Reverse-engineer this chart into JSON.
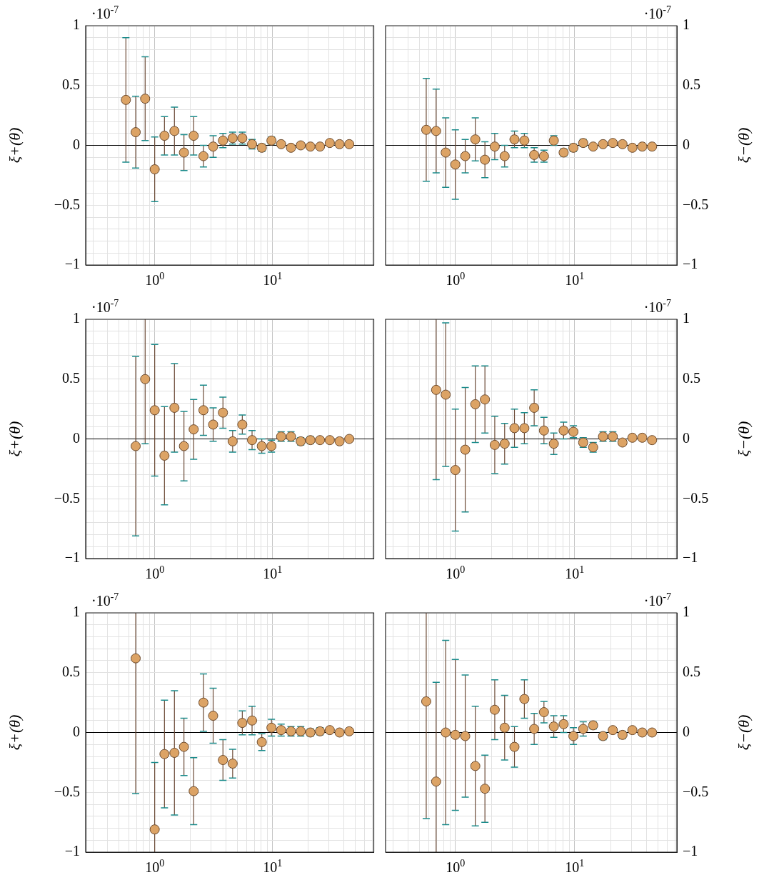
{
  "chart_data": [
    {
      "type": "scatter",
      "ylabel": "ξ+(θ)",
      "annotations": [
        "·10$^{-7}$"
      ],
      "x": [
        0.57,
        0.69,
        0.83,
        1.0,
        1.21,
        1.47,
        1.77,
        2.14,
        2.59,
        3.13,
        3.79,
        4.58,
        5.53,
        6.69,
        8.09,
        9.77,
        11.8,
        14.3,
        17.3,
        20.9,
        25.2,
        30.5,
        36.9,
        44.6
      ],
      "series": [
        {
          "color": "#dca365",
          "values": [
            0.38,
            0.11,
            0.39,
            -0.2,
            0.08,
            0.12,
            -0.06,
            0.08,
            -0.09,
            -0.01,
            0.04,
            0.06,
            0.06,
            0.01,
            -0.02,
            0.04,
            0.01,
            -0.02,
            0,
            -0.01,
            -0.01,
            0.02,
            0.01,
            0.01
          ],
          "errors": [
            0.52,
            0.3,
            0.35,
            0.27,
            0.16,
            0.2,
            0.15,
            0.16,
            0.09,
            0.09,
            0.06,
            0.05,
            0.05,
            0.04,
            0.03,
            0.03,
            0.02,
            null,
            null,
            null,
            null,
            null,
            null,
            null
          ]
        }
      ],
      "xlim": [
        0.26,
        72
      ],
      "xticks": [
        {
          "value": 0.3,
          "label": null
        },
        {
          "value": 0.4,
          "label": null
        },
        {
          "value": 0.5,
          "label": null
        },
        {
          "value": 0.6,
          "label": null
        },
        {
          "value": 0.7,
          "label": null
        },
        {
          "value": 0.8,
          "label": null
        },
        {
          "value": 0.9,
          "label": null
        },
        {
          "value": 1,
          "label": "10$^{0}$"
        },
        {
          "value": 2,
          "label": null
        },
        {
          "value": 3,
          "label": null
        },
        {
          "value": 4,
          "label": null
        },
        {
          "value": 5,
          "label": null
        },
        {
          "value": 6,
          "label": null
        },
        {
          "value": 7,
          "label": null
        },
        {
          "value": 8,
          "label": null
        },
        {
          "value": 9,
          "label": null
        },
        {
          "value": 10,
          "label": "10$^{1}$"
        },
        {
          "value": 20,
          "label": null
        },
        {
          "value": 30,
          "label": null
        },
        {
          "value": 40,
          "label": null
        },
        {
          "value": 50,
          "label": null
        },
        {
          "value": 60,
          "label": null
        },
        {
          "value": 70,
          "label": null
        }
      ],
      "ylim": [
        -1,
        1
      ],
      "yticks": [
        {
          "value": -1,
          "label": "−1"
        },
        {
          "value": -0.9,
          "label": null
        },
        {
          "value": -0.8,
          "label": null
        },
        {
          "value": -0.7,
          "label": null
        },
        {
          "value": -0.6,
          "label": null
        },
        {
          "value": -0.5,
          "label": "−0.5"
        },
        {
          "value": -0.4,
          "label": null
        },
        {
          "value": -0.3,
          "label": null
        },
        {
          "value": -0.2,
          "label": null
        },
        {
          "value": -0.1,
          "label": null
        },
        {
          "value": 0,
          "label": "0"
        },
        {
          "value": 0.1,
          "label": null
        },
        {
          "value": 0.2,
          "label": null
        },
        {
          "value": 0.3,
          "label": null
        },
        {
          "value": 0.4,
          "label": null
        },
        {
          "value": 0.5,
          "label": "0.5"
        },
        {
          "value": 0.6,
          "label": null
        },
        {
          "value": 0.7,
          "label": null
        },
        {
          "value": 0.8,
          "label": null
        },
        {
          "value": 0.9,
          "label": null
        },
        {
          "value": 1,
          "label": "1"
        }
      ],
      "ref_lines": [
        {
          "axis": "y",
          "value": 0,
          "color": "#000000"
        }
      ],
      "grid": true,
      "log": "x",
      "marker": "circle"
    },
    {
      "type": "scatter",
      "y2label": "ξ−(θ)",
      "annotations": [
        "·10$^{-7}$"
      ],
      "x": [
        0.57,
        0.69,
        0.83,
        1.0,
        1.21,
        1.47,
        1.77,
        2.14,
        2.59,
        3.13,
        3.79,
        4.58,
        5.53,
        6.69,
        8.09,
        9.77,
        11.8,
        14.3,
        17.3,
        20.9,
        25.2,
        30.5,
        36.9,
        44.6
      ],
      "series": [
        {
          "color": "#dca365",
          "axis": "y2",
          "values": [
            0.13,
            0.12,
            -0.06,
            -0.16,
            -0.09,
            0.05,
            -0.12,
            -0.01,
            -0.09,
            0.05,
            0.04,
            -0.08,
            -0.09,
            0.04,
            -0.06,
            -0.02,
            0.02,
            -0.01,
            0.01,
            0.02,
            0.01,
            -0.02,
            -0.01,
            -0.01
          ],
          "errors": [
            0.43,
            0.35,
            0.29,
            0.29,
            0.14,
            0.18,
            0.15,
            0.11,
            0.09,
            0.07,
            0.06,
            0.06,
            0.05,
            0.04,
            0.03,
            0.03,
            0.03,
            null,
            null,
            null,
            null,
            null,
            null,
            null
          ]
        }
      ],
      "xlim": [
        0.26,
        72
      ],
      "xticks": [
        {
          "value": 0.3,
          "label": null
        },
        {
          "value": 0.4,
          "label": null
        },
        {
          "value": 0.5,
          "label": null
        },
        {
          "value": 0.6,
          "label": null
        },
        {
          "value": 0.7,
          "label": null
        },
        {
          "value": 0.8,
          "label": null
        },
        {
          "value": 0.9,
          "label": null
        },
        {
          "value": 1,
          "label": "10$^{0}$"
        },
        {
          "value": 2,
          "label": null
        },
        {
          "value": 3,
          "label": null
        },
        {
          "value": 4,
          "label": null
        },
        {
          "value": 5,
          "label": null
        },
        {
          "value": 6,
          "label": null
        },
        {
          "value": 7,
          "label": null
        },
        {
          "value": 8,
          "label": null
        },
        {
          "value": 9,
          "label": null
        },
        {
          "value": 10,
          "label": "10$^{1}$"
        },
        {
          "value": 20,
          "label": null
        },
        {
          "value": 30,
          "label": null
        },
        {
          "value": 40,
          "label": null
        },
        {
          "value": 50,
          "label": null
        },
        {
          "value": 60,
          "label": null
        },
        {
          "value": 70,
          "label": null
        }
      ],
      "y2lim": [
        -1,
        1
      ],
      "y2ticks": [
        {
          "value": -1,
          "label": "−1"
        },
        {
          "value": -0.9,
          "label": null
        },
        {
          "value": -0.8,
          "label": null
        },
        {
          "value": -0.7,
          "label": null
        },
        {
          "value": -0.6,
          "label": null
        },
        {
          "value": -0.5,
          "label": "−0.5"
        },
        {
          "value": -0.4,
          "label": null
        },
        {
          "value": -0.3,
          "label": null
        },
        {
          "value": -0.2,
          "label": null
        },
        {
          "value": -0.1,
          "label": null
        },
        {
          "value": 0,
          "label": "0"
        },
        {
          "value": 0.1,
          "label": null
        },
        {
          "value": 0.2,
          "label": null
        },
        {
          "value": 0.3,
          "label": null
        },
        {
          "value": 0.4,
          "label": null
        },
        {
          "value": 0.5,
          "label": "0.5"
        },
        {
          "value": 0.6,
          "label": null
        },
        {
          "value": 0.7,
          "label": null
        },
        {
          "value": 0.8,
          "label": null
        },
        {
          "value": 0.9,
          "label": null
        },
        {
          "value": 1,
          "label": "1"
        }
      ],
      "ref_lines": [
        {
          "axis": "y2",
          "value": 0,
          "color": "#000000"
        }
      ],
      "grid": true,
      "log": "x",
      "marker": "circle"
    },
    {
      "type": "scatter",
      "ylabel": "ξ+(θ)",
      "annotations": [
        "·10$^{-7}$"
      ],
      "series": [
        {
          "color": "#dca365",
          "x": [
            0.69,
            0.83,
            1.0,
            1.21,
            1.47,
            1.77,
            2.14,
            2.59,
            3.13,
            3.79,
            4.58,
            5.53,
            6.69,
            8.09,
            9.77,
            11.8,
            14.3,
            17.3,
            20.9,
            25.2,
            30.5,
            36.9,
            44.6
          ],
          "values": [
            -0.06,
            0.5,
            0.24,
            -0.14,
            0.26,
            -0.06,
            0.08,
            0.24,
            0.12,
            0.22,
            -0.02,
            0.12,
            -0.01,
            -0.06,
            -0.06,
            0.02,
            0.02,
            -0.02,
            -0.01,
            -0.01,
            -0.01,
            -0.02,
            0
          ],
          "errors": [
            0.75,
            0.54,
            0.55,
            0.41,
            0.37,
            0.29,
            0.25,
            0.21,
            0.14,
            0.13,
            0.09,
            0.08,
            0.08,
            0.06,
            0.05,
            0.04,
            0.04,
            0.03,
            0.03,
            0.02,
            null,
            null,
            null
          ]
        }
      ],
      "xlim": [
        0.26,
        72
      ],
      "xticks": [
        {
          "value": 0.3,
          "label": null
        },
        {
          "value": 0.4,
          "label": null
        },
        {
          "value": 0.5,
          "label": null
        },
        {
          "value": 0.6,
          "label": null
        },
        {
          "value": 0.7,
          "label": null
        },
        {
          "value": 0.8,
          "label": null
        },
        {
          "value": 0.9,
          "label": null
        },
        {
          "value": 1,
          "label": "10$^{0}$"
        },
        {
          "value": 2,
          "label": null
        },
        {
          "value": 3,
          "label": null
        },
        {
          "value": 4,
          "label": null
        },
        {
          "value": 5,
          "label": null
        },
        {
          "value": 6,
          "label": null
        },
        {
          "value": 7,
          "label": null
        },
        {
          "value": 8,
          "label": null
        },
        {
          "value": 9,
          "label": null
        },
        {
          "value": 10,
          "label": "10$^{1}$"
        },
        {
          "value": 20,
          "label": null
        },
        {
          "value": 30,
          "label": null
        },
        {
          "value": 40,
          "label": null
        },
        {
          "value": 50,
          "label": null
        },
        {
          "value": 60,
          "label": null
        },
        {
          "value": 70,
          "label": null
        }
      ],
      "ylim": [
        -1,
        1
      ],
      "yticks": [
        {
          "value": -1,
          "label": "−1"
        },
        {
          "value": -0.9,
          "label": null
        },
        {
          "value": -0.8,
          "label": null
        },
        {
          "value": -0.7,
          "label": null
        },
        {
          "value": -0.6,
          "label": null
        },
        {
          "value": -0.5,
          "label": "−0.5"
        },
        {
          "value": -0.4,
          "label": null
        },
        {
          "value": -0.3,
          "label": null
        },
        {
          "value": -0.2,
          "label": null
        },
        {
          "value": -0.1,
          "label": null
        },
        {
          "value": 0,
          "label": "0"
        },
        {
          "value": 0.1,
          "label": null
        },
        {
          "value": 0.2,
          "label": null
        },
        {
          "value": 0.3,
          "label": null
        },
        {
          "value": 0.4,
          "label": null
        },
        {
          "value": 0.5,
          "label": "0.5"
        },
        {
          "value": 0.6,
          "label": null
        },
        {
          "value": 0.7,
          "label": null
        },
        {
          "value": 0.8,
          "label": null
        },
        {
          "value": 0.9,
          "label": null
        },
        {
          "value": 1,
          "label": "1"
        }
      ],
      "ref_lines": [
        {
          "axis": "y",
          "value": 0,
          "color": "#000000"
        }
      ],
      "grid": true,
      "log": "x",
      "marker": "circle"
    },
    {
      "type": "scatter",
      "y2label": "ξ−(θ)",
      "annotations": [
        "·10$^{-7}$"
      ],
      "series": [
        {
          "color": "#dca365",
          "axis": "y2",
          "x": [
            0.69,
            0.83,
            1.0,
            1.21,
            1.47,
            1.77,
            2.14,
            2.59,
            3.13,
            3.79,
            4.58,
            5.53,
            6.69,
            8.09,
            9.77,
            11.8,
            14.3,
            17.3,
            20.9,
            25.2,
            30.5,
            36.9,
            44.6
          ],
          "values": [
            0.41,
            0.37,
            -0.26,
            -0.09,
            0.29,
            0.33,
            -0.05,
            -0.04,
            0.09,
            0.09,
            0.26,
            0.07,
            -0.04,
            0.07,
            0.06,
            -0.03,
            -0.07,
            0.02,
            0.02,
            -0.03,
            0.01,
            0.01,
            -0.01
          ],
          "errors": [
            0.75,
            0.6,
            0.51,
            0.52,
            0.32,
            0.28,
            0.24,
            0.17,
            0.16,
            0.13,
            0.15,
            0.11,
            0.09,
            0.07,
            0.05,
            0.04,
            0.04,
            0.04,
            0.04,
            null,
            null,
            null,
            null
          ]
        }
      ],
      "xlim": [
        0.26,
        72
      ],
      "xticks": [
        {
          "value": 0.3,
          "label": null
        },
        {
          "value": 0.4,
          "label": null
        },
        {
          "value": 0.5,
          "label": null
        },
        {
          "value": 0.6,
          "label": null
        },
        {
          "value": 0.7,
          "label": null
        },
        {
          "value": 0.8,
          "label": null
        },
        {
          "value": 0.9,
          "label": null
        },
        {
          "value": 1,
          "label": "10$^{0}$"
        },
        {
          "value": 2,
          "label": null
        },
        {
          "value": 3,
          "label": null
        },
        {
          "value": 4,
          "label": null
        },
        {
          "value": 5,
          "label": null
        },
        {
          "value": 6,
          "label": null
        },
        {
          "value": 7,
          "label": null
        },
        {
          "value": 8,
          "label": null
        },
        {
          "value": 9,
          "label": null
        },
        {
          "value": 10,
          "label": "10$^{1}$"
        },
        {
          "value": 20,
          "label": null
        },
        {
          "value": 30,
          "label": null
        },
        {
          "value": 40,
          "label": null
        },
        {
          "value": 50,
          "label": null
        },
        {
          "value": 60,
          "label": null
        },
        {
          "value": 70,
          "label": null
        }
      ],
      "y2lim": [
        -1,
        1
      ],
      "y2ticks": [
        {
          "value": -1,
          "label": "−1"
        },
        {
          "value": -0.9,
          "label": null
        },
        {
          "value": -0.8,
          "label": null
        },
        {
          "value": -0.7,
          "label": null
        },
        {
          "value": -0.6,
          "label": null
        },
        {
          "value": -0.5,
          "label": "−0.5"
        },
        {
          "value": -0.4,
          "label": null
        },
        {
          "value": -0.3,
          "label": null
        },
        {
          "value": -0.2,
          "label": null
        },
        {
          "value": -0.1,
          "label": null
        },
        {
          "value": 0,
          "label": "0"
        },
        {
          "value": 0.1,
          "label": null
        },
        {
          "value": 0.2,
          "label": null
        },
        {
          "value": 0.3,
          "label": null
        },
        {
          "value": 0.4,
          "label": null
        },
        {
          "value": 0.5,
          "label": "0.5"
        },
        {
          "value": 0.6,
          "label": null
        },
        {
          "value": 0.7,
          "label": null
        },
        {
          "value": 0.8,
          "label": null
        },
        {
          "value": 0.9,
          "label": null
        },
        {
          "value": 1,
          "label": "1"
        }
      ],
      "ref_lines": [
        {
          "axis": "y2",
          "value": 0,
          "color": "#000000"
        }
      ],
      "grid": true,
      "log": "x",
      "marker": "circle"
    },
    {
      "type": "scatter",
      "ylabel": "ξ+(θ)",
      "annotations": [
        "·10$^{-7}$"
      ],
      "series": [
        {
          "color": "#dca365",
          "x": [
            0.69,
            1.0,
            1.21,
            1.47,
            1.77,
            2.14,
            2.59,
            3.13,
            3.79,
            4.58,
            5.53,
            6.69,
            8.09,
            9.77,
            11.8,
            14.3,
            17.3,
            20.9,
            25.2,
            30.5,
            36.9,
            44.6
          ],
          "values": [
            0.62,
            -0.81,
            -0.18,
            -0.17,
            -0.12,
            -0.49,
            0.25,
            0.14,
            -0.23,
            -0.26,
            0.08,
            0.1,
            -0.08,
            0.04,
            0.02,
            0.01,
            0.01,
            0,
            0.01,
            0.02,
            0,
            0.01
          ],
          "errors": [
            1.13,
            0.56,
            0.45,
            0.52,
            0.24,
            0.28,
            0.24,
            0.23,
            0.17,
            0.12,
            0.1,
            0.12,
            0.07,
            0.07,
            0.05,
            0.04,
            0.04,
            0.03,
            0.03,
            null,
            null,
            null
          ]
        }
      ],
      "xlim": [
        0.26,
        72
      ],
      "xticks": [
        {
          "value": 0.3,
          "label": null
        },
        {
          "value": 0.4,
          "label": null
        },
        {
          "value": 0.5,
          "label": null
        },
        {
          "value": 0.6,
          "label": null
        },
        {
          "value": 0.7,
          "label": null
        },
        {
          "value": 0.8,
          "label": null
        },
        {
          "value": 0.9,
          "label": null
        },
        {
          "value": 1,
          "label": "10$^{0}$"
        },
        {
          "value": 2,
          "label": null
        },
        {
          "value": 3,
          "label": null
        },
        {
          "value": 4,
          "label": null
        },
        {
          "value": 5,
          "label": null
        },
        {
          "value": 6,
          "label": null
        },
        {
          "value": 7,
          "label": null
        },
        {
          "value": 8,
          "label": null
        },
        {
          "value": 9,
          "label": null
        },
        {
          "value": 10,
          "label": "10$^{1}$"
        },
        {
          "value": 20,
          "label": null
        },
        {
          "value": 30,
          "label": null
        },
        {
          "value": 40,
          "label": null
        },
        {
          "value": 50,
          "label": null
        },
        {
          "value": 60,
          "label": null
        },
        {
          "value": 70,
          "label": null
        }
      ],
      "ylim": [
        -1,
        1
      ],
      "yticks": [
        {
          "value": -1,
          "label": "−1"
        },
        {
          "value": -0.9,
          "label": null
        },
        {
          "value": -0.8,
          "label": null
        },
        {
          "value": -0.7,
          "label": null
        },
        {
          "value": -0.6,
          "label": null
        },
        {
          "value": -0.5,
          "label": "−0.5"
        },
        {
          "value": -0.4,
          "label": null
        },
        {
          "value": -0.3,
          "label": null
        },
        {
          "value": -0.2,
          "label": null
        },
        {
          "value": -0.1,
          "label": null
        },
        {
          "value": 0,
          "label": "0"
        },
        {
          "value": 0.1,
          "label": null
        },
        {
          "value": 0.2,
          "label": null
        },
        {
          "value": 0.3,
          "label": null
        },
        {
          "value": 0.4,
          "label": null
        },
        {
          "value": 0.5,
          "label": "0.5"
        },
        {
          "value": 0.6,
          "label": null
        },
        {
          "value": 0.7,
          "label": null
        },
        {
          "value": 0.8,
          "label": null
        },
        {
          "value": 0.9,
          "label": null
        },
        {
          "value": 1,
          "label": "1"
        }
      ],
      "ref_lines": [
        {
          "axis": "y",
          "value": 0,
          "color": "#000000"
        }
      ],
      "grid": true,
      "log": "x",
      "marker": "circle"
    },
    {
      "type": "scatter",
      "y2label": "ξ−(θ)",
      "annotations": [
        "·10$^{-7}$"
      ],
      "x": [
        0.57,
        0.69,
        0.83,
        1.0,
        1.21,
        1.47,
        1.77,
        2.14,
        2.59,
        3.13,
        3.79,
        4.58,
        5.53,
        6.69,
        8.09,
        9.77,
        11.8,
        14.3,
        17.3,
        20.9,
        25.2,
        30.5,
        36.9,
        44.6
      ],
      "series": [
        {
          "color": "#dca365",
          "axis": "y2",
          "values": [
            0.26,
            -0.41,
            0,
            -0.02,
            -0.03,
            -0.28,
            -0.47,
            0.19,
            0.04,
            -0.12,
            0.28,
            0.03,
            0.17,
            0.05,
            0.07,
            -0.03,
            0.03,
            0.06,
            -0.03,
            0.02,
            -0.02,
            0.02,
            0,
            0
          ],
          "errors": [
            0.98,
            0.83,
            0.77,
            0.63,
            0.51,
            0.5,
            0.28,
            0.25,
            0.27,
            0.17,
            0.16,
            0.13,
            0.09,
            0.09,
            0.07,
            0.07,
            0.06,
            0.03,
            0.03,
            0.02,
            0.03,
            null,
            null,
            null
          ]
        }
      ],
      "xlim": [
        0.26,
        72
      ],
      "xticks": [
        {
          "value": 0.3,
          "label": null
        },
        {
          "value": 0.4,
          "label": null
        },
        {
          "value": 0.5,
          "label": null
        },
        {
          "value": 0.6,
          "label": null
        },
        {
          "value": 0.7,
          "label": null
        },
        {
          "value": 0.8,
          "label": null
        },
        {
          "value": 0.9,
          "label": null
        },
        {
          "value": 1,
          "label": "10$^{0}$"
        },
        {
          "value": 2,
          "label": null
        },
        {
          "value": 3,
          "label": null
        },
        {
          "value": 4,
          "label": null
        },
        {
          "value": 5,
          "label": null
        },
        {
          "value": 6,
          "label": null
        },
        {
          "value": 7,
          "label": null
        },
        {
          "value": 8,
          "label": null
        },
        {
          "value": 9,
          "label": null
        },
        {
          "value": 10,
          "label": "10$^{1}$"
        },
        {
          "value": 20,
          "label": null
        },
        {
          "value": 30,
          "label": null
        },
        {
          "value": 40,
          "label": null
        },
        {
          "value": 50,
          "label": null
        },
        {
          "value": 60,
          "label": null
        },
        {
          "value": 70,
          "label": null
        }
      ],
      "y2lim": [
        -1,
        1
      ],
      "y2ticks": [
        {
          "value": -1,
          "label": "−1"
        },
        {
          "value": -0.9,
          "label": null
        },
        {
          "value": -0.8,
          "label": null
        },
        {
          "value": -0.7,
          "label": null
        },
        {
          "value": -0.6,
          "label": null
        },
        {
          "value": -0.5,
          "label": "−0.5"
        },
        {
          "value": -0.4,
          "label": null
        },
        {
          "value": -0.3,
          "label": null
        },
        {
          "value": -0.2,
          "label": null
        },
        {
          "value": -0.1,
          "label": null
        },
        {
          "value": 0,
          "label": "0"
        },
        {
          "value": 0.1,
          "label": null
        },
        {
          "value": 0.2,
          "label": null
        },
        {
          "value": 0.3,
          "label": null
        },
        {
          "value": 0.4,
          "label": null
        },
        {
          "value": 0.5,
          "label": "0.5"
        },
        {
          "value": 0.6,
          "label": null
        },
        {
          "value": 0.7,
          "label": null
        },
        {
          "value": 0.8,
          "label": null
        },
        {
          "value": 0.9,
          "label": null
        },
        {
          "value": 1,
          "label": "1"
        }
      ],
      "ref_lines": [
        {
          "axis": "y2",
          "value": 0,
          "color": "#000000"
        }
      ],
      "grid": true,
      "log": "x",
      "marker": "circle"
    }
  ]
}
